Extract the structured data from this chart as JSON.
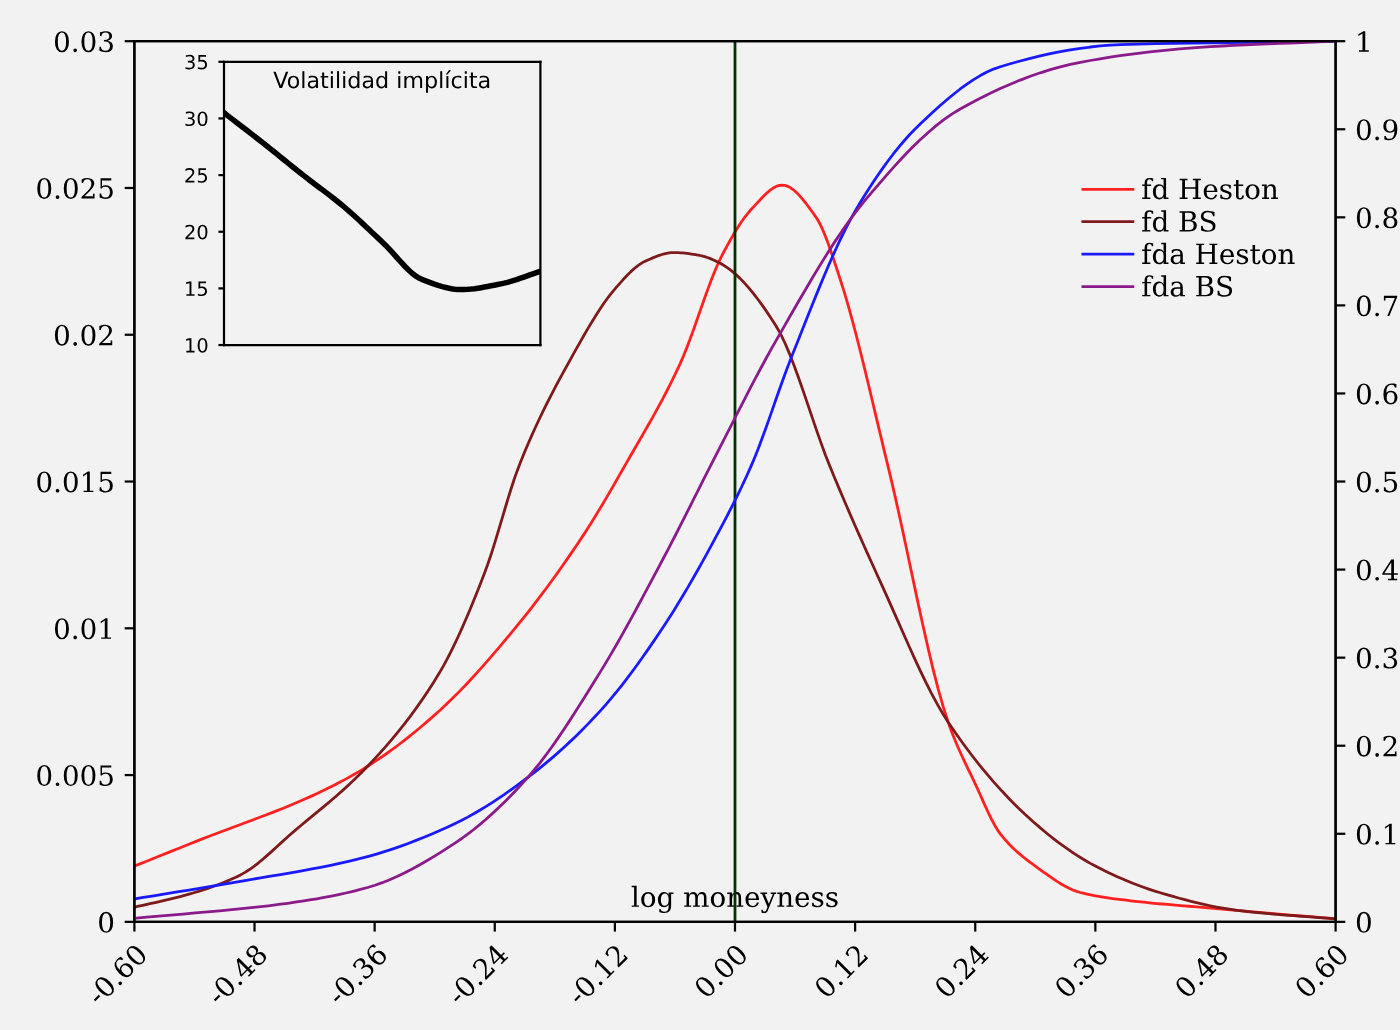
{
  "chart_data": [
    {
      "type": "line",
      "xlabel": "log moneyness",
      "xlim": [
        -0.6,
        0.6
      ],
      "xticks": [
        {
          "value": -0.6,
          "label": "-0.60"
        },
        {
          "value": -0.48,
          "label": "-0.48"
        },
        {
          "value": -0.36,
          "label": "-0.36"
        },
        {
          "value": -0.24,
          "label": "-0.24"
        },
        {
          "value": -0.12,
          "label": "-0.12"
        },
        {
          "value": 0,
          "label": "0.00"
        },
        {
          "value": 0.12,
          "label": "0.12"
        },
        {
          "value": 0.24,
          "label": "0.24"
        },
        {
          "value": 0.36,
          "label": "0.36"
        },
        {
          "value": 0.48,
          "label": "0.48"
        },
        {
          "value": 0.6,
          "label": "0.60"
        }
      ],
      "ylim": [
        0,
        0.03
      ],
      "yticks": [
        0,
        0.005,
        0.01,
        0.015,
        0.02,
        0.025,
        0.03
      ],
      "y2lim": [
        0,
        1
      ],
      "y2ticks": [
        0,
        0.1,
        0.2,
        0.3,
        0.4,
        0.5,
        0.6,
        0.7,
        0.8,
        0.9,
        1
      ],
      "grid": false,
      "legend": "top right",
      "marker": "none",
      "line_style": "solid",
      "ref_lines": [
        {
          "axis": "x",
          "value": 0,
          "color": "#003300"
        }
      ],
      "series": [
        {
          "name": "fd Heston",
          "color": "#ff2020",
          "axis": "y",
          "x": [
            -0.6,
            -0.534,
            -0.422,
            -0.367,
            -0.295,
            -0.215,
            -0.151,
            -0.109,
            -0.055,
            -0.013,
            0.017,
            0.047,
            0.081,
            0.105,
            0.153,
            0.213,
            0.24,
            0.265,
            0.3,
            0.345,
            0.4,
            0.464,
            0.6
          ],
          "values": [
            0.0019,
            0.0028,
            0.0043,
            0.0053,
            0.0072,
            0.0102,
            0.0132,
            0.0156,
            0.019,
            0.0227,
            0.0243,
            0.0251,
            0.024,
            0.0219,
            0.0155,
            0.0068,
            0.0047,
            0.003,
            0.0019,
            0.001,
            0.0007,
            0.0005,
            0.0001
          ]
        },
        {
          "name": "fd BS",
          "color": "#7f1a1a",
          "axis": "y",
          "x": [
            -0.6,
            -0.55,
            -0.494,
            -0.44,
            -0.367,
            -0.295,
            -0.25,
            -0.215,
            -0.167,
            -0.119,
            -0.09,
            -0.061,
            -0.035,
            -0.013,
            0.041,
            0.095,
            0.145,
            0.213,
            0.305,
            0.36,
            0.424,
            0.5,
            0.6
          ],
          "values": [
            0.0005,
            0.0009,
            0.0016,
            0.0031,
            0.0053,
            0.0085,
            0.0119,
            0.0156,
            0.019,
            0.0216,
            0.0225,
            0.0228,
            0.0227,
            0.0224,
            0.0203,
            0.0155,
            0.0116,
            0.0068,
            0.0032,
            0.0019,
            0.001,
            0.0004,
            0.0001
          ]
        },
        {
          "name": "fda Heston",
          "color": "#1a1aff",
          "axis": "y2",
          "x": [
            -0.6,
            -0.494,
            -0.374,
            -0.279,
            -0.207,
            -0.135,
            -0.071,
            -0.013,
            0.017,
            0.057,
            0.121,
            0.185,
            0.265,
            0.385,
            0.6
          ],
          "values": [
            0.026,
            0.046,
            0.072,
            0.112,
            0.164,
            0.239,
            0.336,
            0.45,
            0.52,
            0.643,
            0.809,
            0.906,
            0.971,
            0.996,
            1.0
          ]
        },
        {
          "name": "fda BS",
          "color": "#8b1a8b",
          "axis": "y2",
          "x": [
            -0.6,
            -0.454,
            -0.367,
            -0.279,
            -0.207,
            -0.135,
            -0.071,
            -0.019,
            0.041,
            0.129,
            0.225,
            0.345,
            0.464,
            0.6
          ],
          "values": [
            0.004,
            0.02,
            0.039,
            0.09,
            0.164,
            0.283,
            0.414,
            0.53,
            0.66,
            0.818,
            0.923,
            0.976,
            0.993,
            1.0
          ]
        }
      ]
    },
    {
      "type": "line",
      "title": "Volatilidad implícita",
      "categories": [
        null,
        null,
        null,
        null,
        null,
        null,
        null,
        null,
        null
      ],
      "ylim": [
        10,
        35
      ],
      "yticks": [
        10,
        15,
        20,
        25,
        30,
        35
      ],
      "tick_labels": "y",
      "grid": false,
      "legend": false,
      "series": [
        {
          "color": "#000000",
          "values": [
            30.5,
            27.8,
            25.0,
            22.3,
            19.1,
            15.8,
            14.9,
            15.4,
            16.5
          ]
        }
      ]
    }
  ]
}
